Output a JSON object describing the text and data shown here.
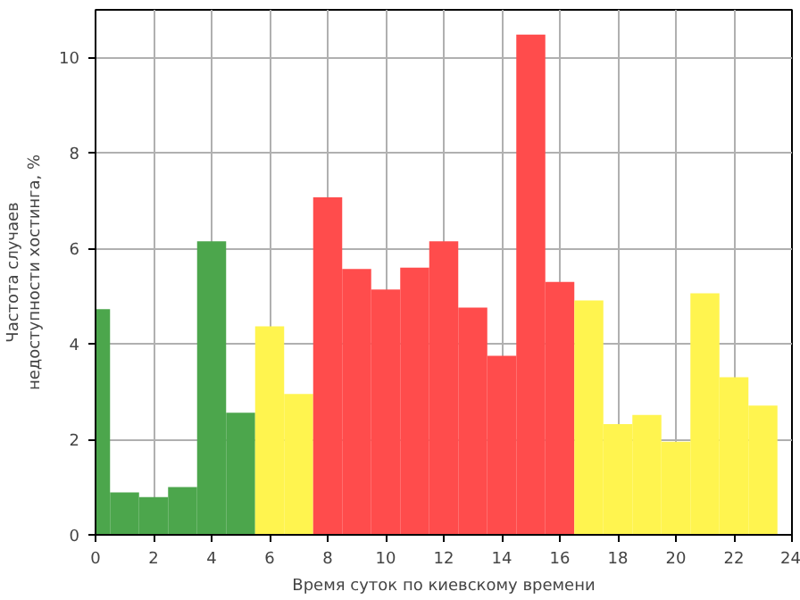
{
  "chart_data": {
    "type": "histogram",
    "xlabel": "Время суток по киевскому времени",
    "ylabel": "Частота случаев\nнедоступности хостинга, %",
    "bins": [
      0,
      0.5,
      1.5,
      2.5,
      3.5,
      4.5,
      5.5,
      6.5,
      7.5,
      8.5,
      9.5,
      10.5,
      11.5,
      12.5,
      13.5,
      14.5,
      15.5,
      16.5,
      17.5,
      18.5,
      19.5,
      20.5,
      21.5,
      22.5,
      23.5
    ],
    "values": [
      4.73,
      0.89,
      0.79,
      1.0,
      6.15,
      2.56,
      4.37,
      2.95,
      7.07,
      5.57,
      5.14,
      5.6,
      6.15,
      4.76,
      3.75,
      10.48,
      5.3,
      4.91,
      2.32,
      2.51,
      1.95,
      5.06,
      3.3,
      2.71
    ],
    "colors": [
      "#4ca64c",
      "#4ca64c",
      "#4ca64c",
      "#4ca64c",
      "#4ca64c",
      "#4ca64c",
      "#fff44f",
      "#fff44f",
      "#ff4c4c",
      "#ff4c4c",
      "#ff4c4c",
      "#ff4c4c",
      "#ff4c4c",
      "#ff4c4c",
      "#ff4c4c",
      "#ff4c4c",
      "#ff4c4c",
      "#fff44f",
      "#fff44f",
      "#fff44f",
      "#fff44f",
      "#fff44f",
      "#fff44f",
      "#fff44f"
    ],
    "xlim": [
      0,
      24
    ],
    "ylim": [
      0,
      11
    ],
    "xticks": [
      0,
      2,
      4,
      6,
      8,
      10,
      12,
      14,
      16,
      18,
      20,
      22,
      24
    ],
    "yticks": [
      0,
      2,
      4,
      6,
      8,
      10
    ],
    "grid": true
  }
}
